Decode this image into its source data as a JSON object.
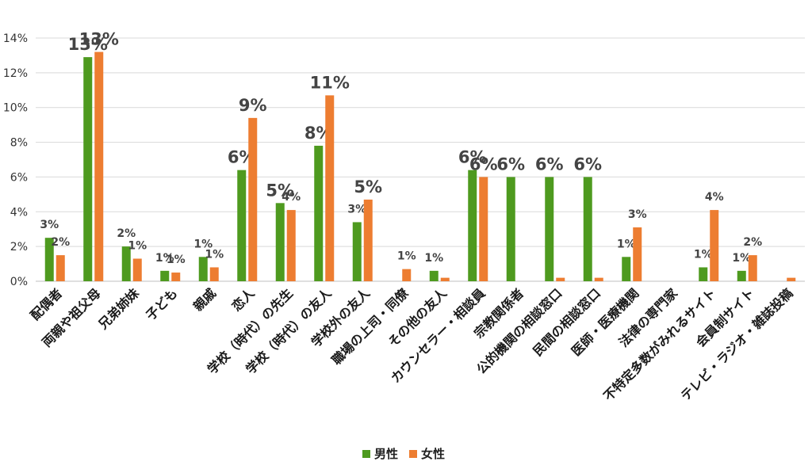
{
  "chart_data": {
    "type": "bar",
    "categories": [
      "配偶者",
      "両親や祖父母",
      "兄弟姉妹",
      "子ども",
      "親戚",
      "恋人",
      "学校（時代）の先生",
      "学校（時代）の友人",
      "学校外の友人",
      "職場の上司・同僚",
      "その他の友人",
      "カウンセラー・相談員",
      "宗教関係者",
      "公的機関の相談窓口",
      "民間の相談窓口",
      "医師・医療機関",
      "法律の専門家",
      "不特定多数がみれるサイト",
      "会員制サイト",
      "テレビ・ラジオ・雑誌投稿"
    ],
    "series": [
      {
        "name": "男性",
        "color": "#4e9a1f",
        "values": [
          2.5,
          12.9,
          2.0,
          0.6,
          1.4,
          6.4,
          4.5,
          7.8,
          3.4,
          0.0,
          0.6,
          6.4,
          6.0,
          6.0,
          6.0,
          1.4,
          0.0,
          0.8,
          0.6,
          0.0
        ],
        "labels": [
          "3%",
          "13%",
          "2%",
          "1%",
          "1%",
          "6%",
          "5%",
          "8%",
          "3%",
          "",
          "1%",
          "6%",
          "6%",
          "6%",
          "6%",
          "1%",
          "",
          "1%",
          "1%",
          ""
        ]
      },
      {
        "name": "女性",
        "color": "#ed7d31",
        "values": [
          1.5,
          13.2,
          1.3,
          0.5,
          0.8,
          9.4,
          4.1,
          10.7,
          4.7,
          0.7,
          0.2,
          6.0,
          0.0,
          0.2,
          0.2,
          3.1,
          0.0,
          4.1,
          1.5,
          0.2
        ],
        "labels": [
          "2%",
          "13%",
          "1%",
          "1%",
          "1%",
          "9%",
          "4%",
          "11%",
          "5%",
          "1%",
          "",
          "6%",
          "",
          "",
          "",
          "3%",
          "",
          "4%",
          "2%",
          ""
        ]
      }
    ],
    "y_ticks": [
      "0%",
      "2%",
      "4%",
      "6%",
      "8%",
      "10%",
      "12%",
      "14%"
    ],
    "ylim": [
      0,
      14
    ],
    "grid": true,
    "legend_position": "bottom"
  }
}
